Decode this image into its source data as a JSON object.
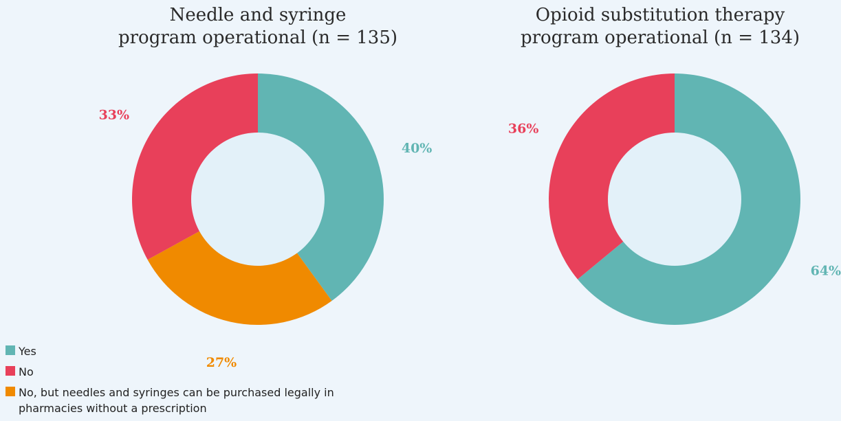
{
  "chart_data": [
    {
      "type": "pie",
      "title_lines": [
        "Needle and syringe",
        "program operational  (n = 135)"
      ],
      "slices": [
        {
          "name": "Yes",
          "value": 40,
          "label": "40%",
          "color": "#61b5b3"
        },
        {
          "name": "No, but needles and syringes can be purchased legally in pharmacies without a prescription",
          "value": 27,
          "label": "27%",
          "color": "#f08a00"
        },
        {
          "name": "No",
          "value": 33,
          "label": "33%",
          "color": "#e8405a"
        }
      ],
      "hole_color": "#e3f1f9"
    },
    {
      "type": "pie",
      "title_lines": [
        "Opioid substitution therapy",
        "program operational  (n = 134)"
      ],
      "slices": [
        {
          "name": "Yes",
          "value": 64,
          "label": "64%",
          "color": "#61b5b3"
        },
        {
          "name": "No",
          "value": 36,
          "label": "36%",
          "color": "#e8405a"
        }
      ],
      "hole_color": "#e3f1f9"
    }
  ],
  "legend": {
    "position": "bottom-left",
    "items": [
      {
        "label": "Yes",
        "color": "#61b5b3"
      },
      {
        "label": "No",
        "color": "#e8405a"
      },
      {
        "label": "No, but needles and syringes can be purchased legally in pharmacies without a prescription",
        "color": "#f08a00"
      }
    ]
  }
}
